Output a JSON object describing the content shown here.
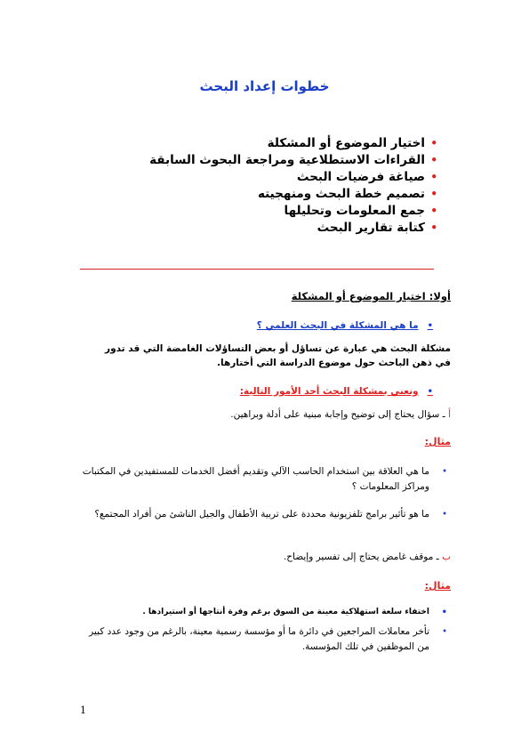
{
  "title": "خطوات إعداد البحث",
  "steps": [
    "اختيار الموضوع أو المشكلة",
    "القراءات الاستطلاعية ومراجعة البحوث السابقة",
    "صياغة فرضيات البحث",
    "تصميم خطة البحث ومنهجيته",
    "جمع المعلومات وتحليلها",
    "كتابة تقارير البحث"
  ],
  "section1": {
    "heading": "أولا: اختيار الموضوع أو المشكلة",
    "question1": "ما هي المشكلة في البحث العلمي ؟",
    "definition": "مشكلة البحث هي عبارة عن تساؤل أو بعض التساؤلات الغامضة التي قد تدور في ذهن الباحث حول موضوع الدراسة التي أختارها.",
    "question2": "ونعني بمشكلة البحث أحد الأمور التالية:",
    "point_a_marker": "أ",
    "point_a": " ـ سؤال يحتاج إلى توضيح وإجابة مبنية على أدلة وبراهين.",
    "example_label_1": "مثال:",
    "examples_1": [
      "ما هي العلاقة بين استخدام الحاسب الآلي وتقديم أفضل الخدمات للمستفيدين في المكتبات ومراكز المعلومات ؟",
      "ما هو تأثير برامج تلفزيونية محددة على تربية الأطفال والجيل الناشئ من أفراد المجتمع؟"
    ],
    "point_b_marker": "ب",
    "point_b": " ـ موقف غامض يحتاج إلى تفسير وإيضاح.",
    "example_label_2": "مثال:",
    "examples_2": [
      "اختفاء سلعة استهلاكية معينة من السوق برغم وفرة أنتاجها أو استيرادها .",
      "تأخر معاملات المراجعين في دائرة ما أو مؤسسة رسمية معينة، بالرغم من وجود عدد كبير من الموظفين في تلك المؤسسة."
    ]
  },
  "page_number": "1",
  "colors": {
    "title": "#1a3ec8",
    "accent_red": "#e0201f",
    "rule": "#d42020"
  }
}
